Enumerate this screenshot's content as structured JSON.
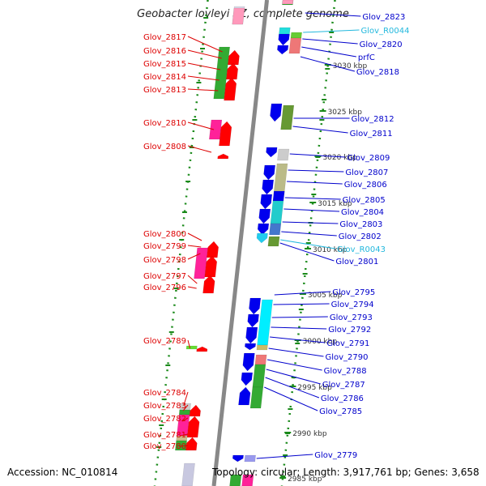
{
  "title": "Geobacter lovleyi SZ, complete genome",
  "footer": {
    "accession": "Accession: NC_010814",
    "summary": "Topology: circular; Length: 3,917,761 bp; Genes: 3,658"
  },
  "colors": {
    "left_label": "#dd0000",
    "right_label": "#0000cc",
    "rna_label": "#22b8dd",
    "backbone": "#888888",
    "dots": "#1a8a1a",
    "ticks": "#1a8a1a"
  },
  "kbp_labels": [
    "3030 kbp",
    "3025 kbp",
    "3020 kbp",
    "3015 kbp",
    "3010 kbp",
    "3005 kbp",
    "3000 kbp",
    "2995 kbp",
    "2990 kbp",
    "2985 kbp"
  ],
  "left_genes": [
    "Glov_2817",
    "Glov_2816",
    "Glov_2815",
    "Glov_2814",
    "Glov_2813",
    "Glov_2810",
    "Glov_2808",
    "Glov_2800",
    "Glov_2799",
    "Glov_2798",
    "Glov_2797",
    "Glov_2796",
    "Glov_2789",
    "Glov_2784",
    "Glov_2783",
    "Glov_2782",
    "Glov_2781",
    "Glov_2780"
  ],
  "right_genes": [
    "Glov_2823",
    "Glov_R0044",
    "Glov_2820",
    "prfC",
    "Glov_2818",
    "Glov_2812",
    "Glov_2811",
    "Glov_2809",
    "Glov_2807",
    "Glov_2806",
    "Glov_2805",
    "Glov_2804",
    "Glov_2803",
    "Glov_2802",
    "Glov_R0043",
    "Glov_2801",
    "Glov_2795",
    "Glov_2794",
    "Glov_2793",
    "Glov_2792",
    "Glov_2791",
    "Glov_2790",
    "Glov_2788",
    "Glov_2787",
    "Glov_2786",
    "Glov_2785",
    "Glov_2779"
  ]
}
